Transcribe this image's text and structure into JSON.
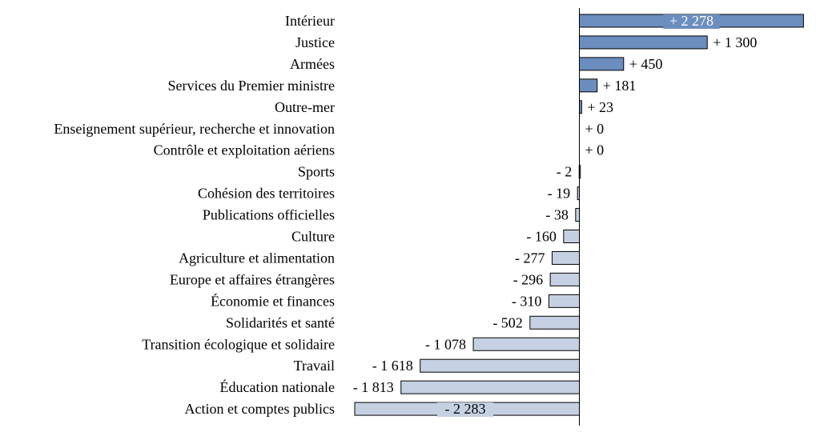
{
  "chart_data": {
    "type": "bar",
    "orientation": "horizontal",
    "title": "",
    "xlabel": "",
    "ylabel": "",
    "grid": false,
    "legend": "none",
    "colors": {
      "positive": "#6c8ebf",
      "negative": "#c5d1e3",
      "positive_label_bg": "#6c8ebf",
      "negative_label_bg": "#c5d1e3"
    },
    "categories": [
      "Intérieur",
      "Justice",
      "Armées",
      "Services du Premier ministre",
      "Outre-mer",
      "Enseignement supérieur, recherche et innovation",
      "Contrôle et exploitation aériens",
      "Sports",
      "Cohésion des territoires",
      "Publications officielles",
      "Culture",
      "Agriculture et alimentation",
      "Europe et affaires étrangères",
      "Économie et finances",
      "Solidarités et santé",
      "Transition écologique et solidaire",
      "Travail",
      "Éducation nationale",
      "Action et comptes publics"
    ],
    "values": [
      2278,
      1300,
      450,
      181,
      23,
      0,
      0,
      -2,
      -19,
      -38,
      -160,
      -277,
      -296,
      -310,
      -502,
      -1078,
      -1618,
      -1813,
      -2283
    ],
    "value_labels": [
      "+ 2 278",
      "+ 1 300",
      "+ 450",
      "+ 181",
      "+ 23",
      "+ 0",
      "+ 0",
      "- 2",
      "- 19",
      "- 38",
      "- 160",
      "- 277",
      "- 296",
      "- 310",
      "- 502",
      "- 1 078",
      "- 1 618",
      "- 1 813",
      "- 2 283"
    ],
    "inside_label_indices": [
      0,
      18
    ],
    "xlim": [
      -2283,
      2278
    ]
  }
}
